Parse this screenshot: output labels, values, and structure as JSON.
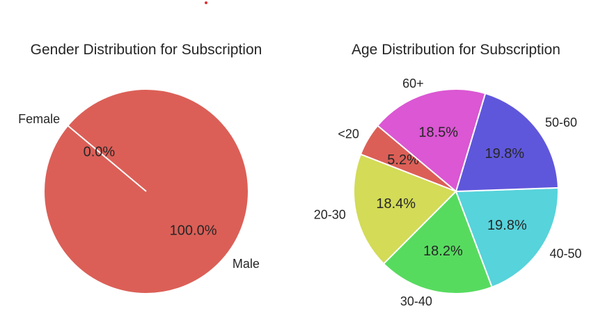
{
  "chart_data": [
    {
      "type": "pie",
      "title": "Gender Distribution for Subscription",
      "start_angle_deg": 140,
      "direction": "counterclockwise",
      "slices": [
        {
          "label": "Male",
          "value": 100.0,
          "pct_label": "100.0%",
          "color": "#db5f57"
        },
        {
          "label": "Female",
          "value": 0.0,
          "pct_label": "0.0%",
          "color": "#db5f57"
        }
      ]
    },
    {
      "type": "pie",
      "title": "Age Distribution for Subscription",
      "start_angle_deg": 140,
      "direction": "counterclockwise",
      "slices": [
        {
          "label": "<20",
          "value": 5.2,
          "pct_label": "5.2%",
          "color": "#db5f57"
        },
        {
          "label": "20-30",
          "value": 18.4,
          "pct_label": "18.4%",
          "color": "#d3db57"
        },
        {
          "label": "30-40",
          "value": 18.2,
          "pct_label": "18.2%",
          "color": "#57db5f"
        },
        {
          "label": "40-50",
          "value": 19.8,
          "pct_label": "19.8%",
          "color": "#57d3db"
        },
        {
          "label": "50-60",
          "value": 19.8,
          "pct_label": "19.8%",
          "color": "#5f57db"
        },
        {
          "label": "60+",
          "value": 18.5,
          "pct_label": "18.5%",
          "color": "#db57d3"
        }
      ]
    }
  ]
}
